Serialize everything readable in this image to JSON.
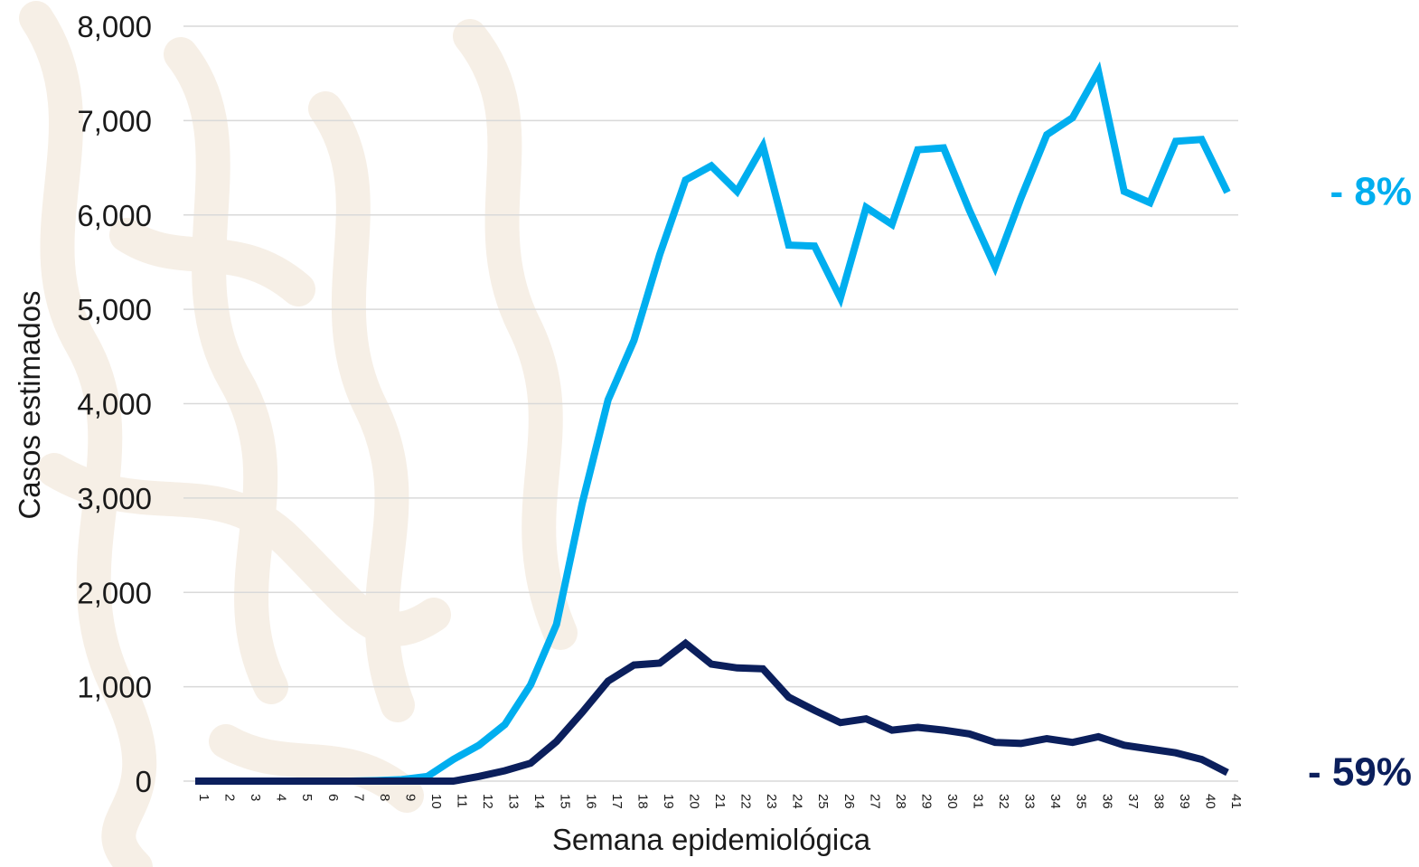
{
  "chart_data": {
    "type": "line",
    "title": "",
    "xlabel": "Semana epidemiológica",
    "ylabel": "Casos estimados",
    "ylim": [
      0,
      8000
    ],
    "yticks": [
      "0",
      "1,000",
      "2,000",
      "3,000",
      "4,000",
      "5,000",
      "6,000",
      "7,000",
      "8,000"
    ],
    "ytick_values": [
      0,
      1000,
      2000,
      3000,
      4000,
      5000,
      6000,
      7000,
      8000
    ],
    "grid": true,
    "categories": [
      "1",
      "2",
      "3",
      "4",
      "5",
      "6",
      "7",
      "8",
      "9",
      "10",
      "11",
      "12",
      "13",
      "14",
      "15",
      "16",
      "17",
      "18",
      "19",
      "20",
      "21",
      "22",
      "23",
      "24",
      "25",
      "26",
      "27",
      "28",
      "29",
      "30",
      "31",
      "32",
      "33",
      "34",
      "35",
      "36",
      "37",
      "38",
      "39",
      "40",
      "41"
    ],
    "series": [
      {
        "color": "#00AEEF",
        "end_label": "- 8%",
        "values": [
          0,
          0,
          0,
          0,
          0,
          0,
          0,
          5,
          15,
          50,
          230,
          380,
          600,
          1020,
          1660,
          2950,
          4040,
          4670,
          5580,
          6370,
          6520,
          6250,
          6730,
          5680,
          5670,
          5120,
          6080,
          5900,
          6690,
          6710,
          6050,
          5450,
          6180,
          6850,
          7030,
          7520,
          6250,
          6130,
          6780,
          6800,
          6240
        ]
      },
      {
        "color": "#0B1F5C",
        "end_label": "- 59%",
        "values": [
          0,
          0,
          0,
          0,
          0,
          0,
          0,
          0,
          0,
          0,
          0,
          50,
          110,
          190,
          420,
          730,
          1060,
          1230,
          1250,
          1460,
          1240,
          1200,
          1190,
          890,
          750,
          620,
          660,
          540,
          570,
          540,
          500,
          410,
          400,
          450,
          410,
          470,
          380,
          340,
          300,
          230,
          90
        ]
      }
    ]
  }
}
